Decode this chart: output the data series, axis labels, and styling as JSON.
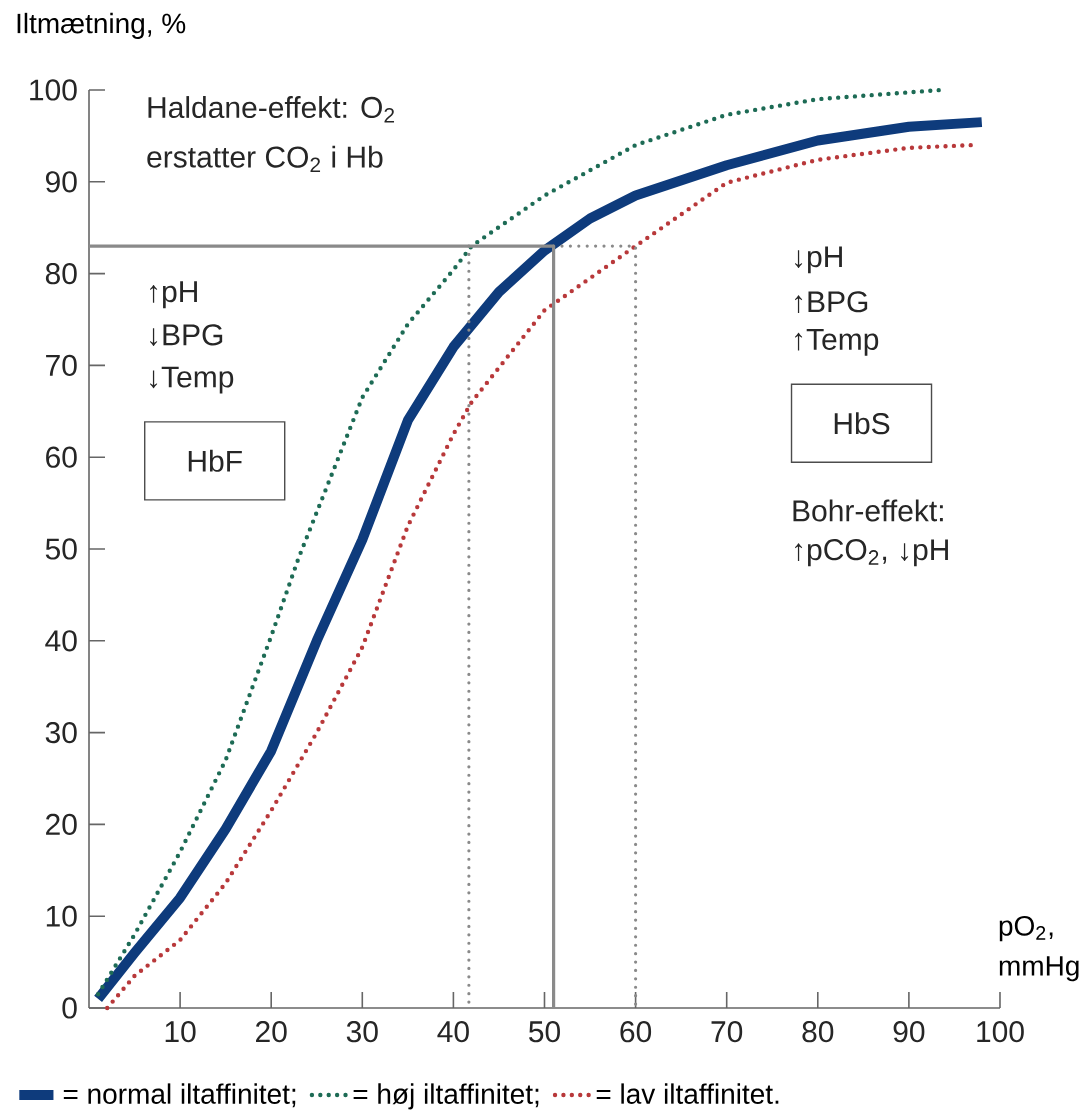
{
  "chart_data": {
    "type": "line",
    "ylabel": "Iltmætning, %",
    "xlabel": "pO$_{2}$, mmHg",
    "xlim": [
      0,
      100
    ],
    "ylim": [
      0,
      100
    ],
    "xticks": [
      10,
      20,
      30,
      40,
      50,
      60,
      70,
      80,
      90,
      100
    ],
    "yticks": [
      0,
      10,
      20,
      30,
      40,
      50,
      60,
      70,
      80,
      90,
      100
    ],
    "legend": "bottom",
    "series": [
      {
        "name": "= normal iltaffinitet;",
        "color": "#0e3b7c",
        "line_style": "solid",
        "x": [
          1,
          5,
          10,
          15,
          20,
          25,
          30,
          35,
          40,
          45,
          50,
          55,
          60,
          70,
          80,
          90,
          98
        ],
        "values": [
          1,
          6,
          12,
          19.5,
          28,
          40,
          51,
          64,
          72,
          78,
          82.5,
          86,
          88.5,
          91.8,
          94.5,
          96,
          96.5
        ]
      },
      {
        "name": "= høj iltaffinitet;",
        "color": "#1d6b55",
        "line_style": "dotted",
        "x": [
          1,
          5,
          10,
          15,
          20,
          23,
          25,
          30,
          35,
          40,
          42,
          50,
          60,
          70,
          80,
          93.5
        ],
        "values": [
          1.5,
          8,
          17,
          27,
          40.5,
          49,
          54,
          66.5,
          74.5,
          80.4,
          83,
          88.5,
          94,
          97.3,
          99,
          100
        ]
      },
      {
        "name": "= lav iltaffinitet.",
        "color": "#b8383a",
        "line_style": "dotted",
        "x": [
          2,
          5,
          10,
          15,
          20,
          25,
          30,
          35,
          40,
          42,
          50,
          60,
          70,
          80,
          90,
          97
        ],
        "values": [
          0,
          3.5,
          7.4,
          13.6,
          21.5,
          30,
          39.3,
          52.5,
          62.5,
          66,
          76,
          83,
          89.9,
          92.4,
          93.7,
          94
        ]
      },
      {
        "color": "#8a8a8a",
        "line_style": "solid",
        "x": [
          0,
          51,
          51
        ],
        "values": [
          83,
          83,
          0
        ]
      },
      {
        "color": "#8a8a8a",
        "line_style": "dotted",
        "x": [
          51,
          60,
          60
        ],
        "values": [
          83,
          83,
          0
        ]
      },
      {
        "color": "#8a8a8a",
        "line_style": "dotted",
        "x": [
          41.7,
          41.7
        ],
        "values": [
          83,
          0
        ]
      }
    ],
    "annotations": [
      "Haldane-effekt: O$_{2}$",
      "erstatter CO$_{2}$ i Hb",
      "↑pH",
      "↓BPG",
      "↓Temp",
      "HbF",
      "↓pH",
      "↑BPG",
      "↑Temp",
      "HbS",
      "Bohr-effekt:",
      "↑pCO$_{2}$, ↓pH"
    ]
  }
}
